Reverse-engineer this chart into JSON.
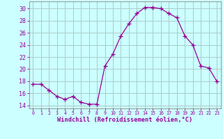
{
  "x": [
    0,
    1,
    2,
    3,
    4,
    5,
    6,
    7,
    8,
    9,
    10,
    11,
    12,
    13,
    14,
    15,
    16,
    17,
    18,
    19,
    20,
    21,
    22,
    23
  ],
  "y": [
    17.5,
    17.5,
    16.5,
    15.5,
    15.0,
    15.5,
    14.5,
    14.2,
    14.2,
    20.5,
    22.5,
    25.5,
    27.5,
    29.2,
    30.2,
    30.2,
    30.0,
    29.2,
    28.5,
    25.5,
    24.0,
    20.5,
    20.2,
    18.0
  ],
  "line_color": "#990099",
  "marker": "+",
  "marker_size": 4,
  "bg_color": "#ccffff",
  "grid_color": "#aacccc",
  "ylabel_ticks": [
    14,
    16,
    18,
    20,
    22,
    24,
    26,
    28,
    30
  ],
  "xtick_labels": [
    "0",
    "1",
    "2",
    "3",
    "4",
    "5",
    "6",
    "7",
    "8",
    "9",
    "10",
    "11",
    "12",
    "13",
    "14",
    "15",
    "16",
    "17",
    "18",
    "19",
    "20",
    "21",
    "22",
    "23"
  ],
  "ylim": [
    13.5,
    31.2
  ],
  "xlim": [
    -0.5,
    23.5
  ],
  "axis_color": "#888888",
  "tick_color": "#990099",
  "label_color": "#990099",
  "xlabel": "Windchill (Refroidissement éolien,°C)",
  "font_family": "monospace",
  "ytick_fontsize": 6.0,
  "xtick_fontsize": 4.8,
  "xlabel_fontsize": 6.2
}
